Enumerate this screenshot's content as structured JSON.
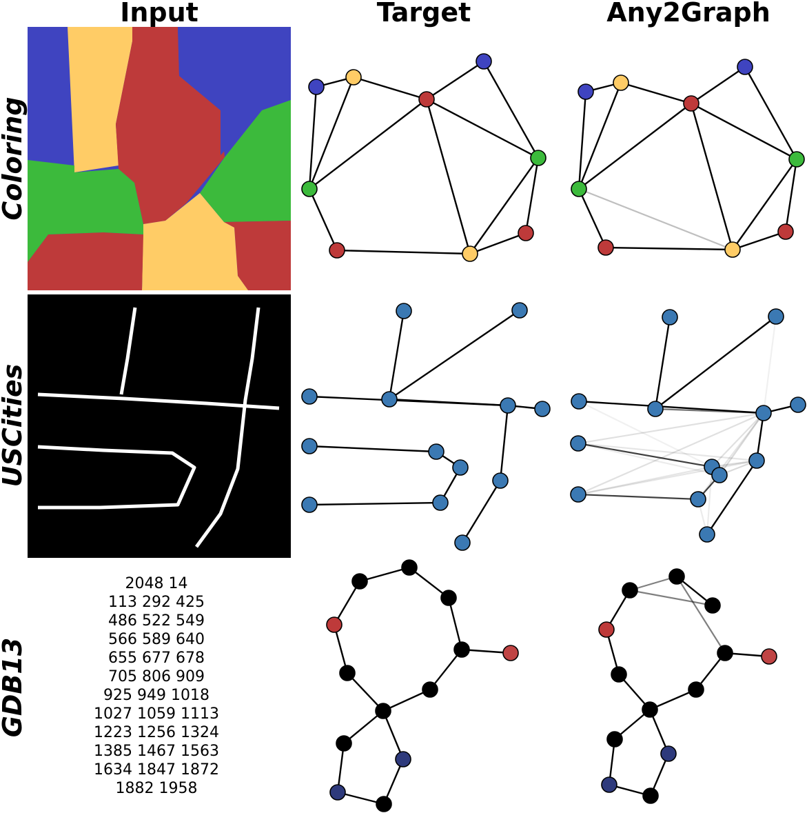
{
  "columns": [
    "Input",
    "Target",
    "Any2Graph"
  ],
  "rows": [
    "Coloring",
    "USCities",
    "GDB13"
  ],
  "colors": {
    "blue": "#3f44c0",
    "yellow": "#ffcc66",
    "red": "#be3a3a",
    "green": "#3cba3c",
    "city": "#3b79b3",
    "black": "#000000",
    "navy": "#2e3a7c",
    "bond_red": "#c04444"
  },
  "coloring_input": {
    "regions": [
      "blue",
      "yellow",
      "red",
      "blue",
      "green",
      "red",
      "yellow",
      "red",
      "green"
    ]
  },
  "gdb_text": [
    "2048 14",
    "113 292 425",
    "486 522 549",
    "566 589 640",
    "655 677 678",
    "705 806 909",
    "925 949 1018",
    "1027 1059 1113",
    "1223 1256 1324",
    "1385 1467 1563",
    "1634 1847 1872",
    "1882 1958"
  ],
  "graphs": {
    "coloring_target": {
      "nodes": [
        "blue",
        "yellow",
        "blue",
        "red",
        "green",
        "green",
        "red",
        "red",
        "yellow"
      ],
      "edges": [
        [
          0,
          4,
          1
        ],
        [
          1,
          4,
          1
        ],
        [
          0,
          1,
          1
        ],
        [
          1,
          3,
          1
        ],
        [
          3,
          4,
          1
        ],
        [
          3,
          2,
          1
        ],
        [
          2,
          5,
          1
        ],
        [
          3,
          5,
          1
        ],
        [
          3,
          8,
          1
        ],
        [
          4,
          6,
          1
        ],
        [
          6,
          8,
          1
        ],
        [
          8,
          5,
          1
        ],
        [
          8,
          7,
          1
        ],
        [
          7,
          5,
          1
        ]
      ]
    },
    "coloring_pred": {
      "nodes": [
        "blue",
        "yellow",
        "blue",
        "red",
        "green",
        "green",
        "red",
        "red",
        "yellow"
      ],
      "edges": [
        [
          0,
          4,
          1
        ],
        [
          1,
          4,
          1
        ],
        [
          0,
          1,
          1
        ],
        [
          1,
          3,
          1
        ],
        [
          3,
          4,
          1
        ],
        [
          3,
          2,
          1
        ],
        [
          2,
          5,
          1
        ],
        [
          3,
          5,
          1
        ],
        [
          3,
          8,
          1
        ],
        [
          4,
          6,
          1
        ],
        [
          6,
          8,
          1
        ],
        [
          8,
          5,
          1
        ],
        [
          8,
          7,
          1
        ],
        [
          7,
          5,
          1
        ],
        [
          4,
          8,
          0.25
        ]
      ]
    },
    "uscities_target": {
      "nodes": [
        "city",
        "city",
        "city",
        "city",
        "city",
        "city",
        "city",
        "city",
        "city",
        "city",
        "city",
        "city",
        "city"
      ],
      "edges": [
        [
          0,
          2,
          1
        ],
        [
          1,
          2,
          1
        ],
        [
          2,
          3,
          1
        ],
        [
          3,
          4,
          1
        ],
        [
          5,
          3,
          1
        ],
        [
          3,
          6,
          1
        ],
        [
          6,
          7,
          1
        ],
        [
          8,
          9,
          1
        ],
        [
          9,
          10,
          1
        ],
        [
          10,
          11,
          1
        ],
        [
          11,
          12,
          1
        ]
      ]
    },
    "uscities_pred": {
      "nodes": [
        "city",
        "city",
        "city",
        "city",
        "city",
        "city",
        "city",
        "city",
        "city",
        "city",
        "city",
        "city",
        "city"
      ],
      "edges": [
        [
          0,
          2,
          1
        ],
        [
          1,
          2,
          1
        ],
        [
          2,
          3,
          0.55
        ],
        [
          3,
          4,
          1
        ],
        [
          5,
          3,
          1
        ],
        [
          3,
          6,
          1
        ],
        [
          6,
          7,
          1
        ],
        [
          8,
          9,
          0.75
        ],
        [
          9,
          10,
          0.75
        ],
        [
          10,
          11,
          0.75
        ],
        [
          11,
          12,
          0.75
        ],
        [
          8,
          6,
          0.1
        ],
        [
          8,
          3,
          0.12
        ],
        [
          12,
          6,
          0.1
        ],
        [
          12,
          3,
          0.12
        ],
        [
          9,
          6,
          0.15
        ],
        [
          10,
          6,
          0.15
        ],
        [
          10,
          3,
          0.15
        ],
        [
          9,
          3,
          0.12
        ],
        [
          11,
          3,
          0.1
        ],
        [
          12,
          9,
          0.1
        ],
        [
          8,
          10,
          0.08
        ],
        [
          5,
          9,
          0.06
        ],
        [
          1,
          3,
          0.06
        ],
        [
          11,
          7,
          0.08
        ],
        [
          7,
          9,
          0.08
        ]
      ]
    },
    "gdb_target": {
      "nodes": [
        "black",
        "black",
        "black",
        "red",
        "black",
        "bond_red",
        "black",
        "black",
        "black",
        "black",
        "navy",
        "navy",
        "black"
      ],
      "edges": [
        [
          0,
          1,
          1
        ],
        [
          1,
          2,
          1
        ],
        [
          2,
          4,
          1
        ],
        [
          4,
          5,
          1
        ],
        [
          4,
          7,
          1
        ],
        [
          7,
          8,
          1
        ],
        [
          0,
          3,
          1
        ],
        [
          3,
          6,
          1
        ],
        [
          6,
          8,
          1
        ],
        [
          8,
          9,
          1
        ],
        [
          8,
          10,
          1
        ],
        [
          9,
          11,
          1
        ],
        [
          11,
          12,
          1
        ],
        [
          12,
          10,
          1
        ]
      ]
    },
    "gdb_pred": {
      "nodes": [
        "black",
        "black",
        "black",
        "red",
        "black",
        "bond_red",
        "black",
        "black",
        "black",
        "black",
        "navy",
        "navy",
        "black"
      ],
      "edges": [
        [
          0,
          1,
          0.5
        ],
        [
          0,
          2,
          0.5
        ],
        [
          1,
          2,
          1
        ],
        [
          1,
          4,
          0.5
        ],
        [
          0,
          3,
          1
        ],
        [
          4,
          5,
          1
        ],
        [
          4,
          7,
          1
        ],
        [
          7,
          8,
          1
        ],
        [
          3,
          6,
          1
        ],
        [
          6,
          8,
          1
        ],
        [
          8,
          9,
          1
        ],
        [
          8,
          10,
          1
        ],
        [
          9,
          11,
          1
        ],
        [
          11,
          12,
          1
        ],
        [
          12,
          10,
          1
        ]
      ]
    }
  }
}
